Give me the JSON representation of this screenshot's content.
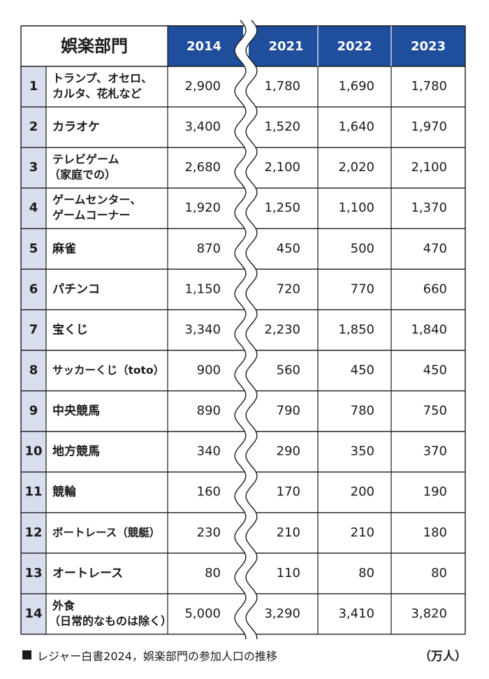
{
  "chart_data": {
    "type": "table",
    "header": {
      "category_label": "娯楽部門",
      "years": [
        "2014",
        "2021",
        "2022",
        "2023"
      ]
    },
    "rows": [
      {
        "rank": "1",
        "name": [
          "トランプ、オセロ、",
          "カルタ、花札など"
        ],
        "values": [
          "2,900",
          "1,780",
          "1,690",
          "1,780"
        ]
      },
      {
        "rank": "2",
        "name": [
          "カラオケ"
        ],
        "values": [
          "3,400",
          "1,520",
          "1,640",
          "1,970"
        ]
      },
      {
        "rank": "3",
        "name": [
          "テレビゲーム",
          "（家庭での）"
        ],
        "values": [
          "2,680",
          "2,100",
          "2,020",
          "2,100"
        ]
      },
      {
        "rank": "4",
        "name": [
          "ゲームセンター、",
          "ゲームコーナー"
        ],
        "values": [
          "1,920",
          "1,250",
          "1,100",
          "1,370"
        ]
      },
      {
        "rank": "5",
        "name": [
          "麻雀"
        ],
        "values": [
          "870",
          "450",
          "500",
          "470"
        ]
      },
      {
        "rank": "6",
        "name": [
          "パチンコ"
        ],
        "values": [
          "1,150",
          "720",
          "770",
          "660"
        ]
      },
      {
        "rank": "7",
        "name": [
          "宝くじ"
        ],
        "values": [
          "3,340",
          "2,230",
          "1,850",
          "1,840"
        ]
      },
      {
        "rank": "8",
        "name": [
          "サッカーくじ（toto）"
        ],
        "values": [
          "900",
          "560",
          "450",
          "450"
        ]
      },
      {
        "rank": "9",
        "name": [
          "中央競馬"
        ],
        "values": [
          "890",
          "790",
          "780",
          "750"
        ]
      },
      {
        "rank": "10",
        "name": [
          "地方競馬"
        ],
        "values": [
          "340",
          "290",
          "350",
          "370"
        ]
      },
      {
        "rank": "11",
        "name": [
          "競輪"
        ],
        "values": [
          "160",
          "170",
          "200",
          "190"
        ]
      },
      {
        "rank": "12",
        "name": [
          "ボートレース（競艇）"
        ],
        "values": [
          "230",
          "210",
          "210",
          "180"
        ]
      },
      {
        "rank": "13",
        "name": [
          "オートレース"
        ],
        "values": [
          "80",
          "110",
          "80",
          "80"
        ]
      },
      {
        "rank": "14",
        "name": [
          "外食",
          "（日常的なものは除く）"
        ],
        "values": [
          "5,000",
          "3,290",
          "3,410",
          "3,820"
        ]
      }
    ]
  },
  "caption": {
    "source": "レジャー白書2024，娯楽部門の参加人口の推移",
    "unit": "（万人）"
  },
  "colors": {
    "header_blue": "#1f4e9c",
    "rank_fill": "#d9deee",
    "border": "#1a1a1a",
    "header_text": "#ffffff"
  }
}
